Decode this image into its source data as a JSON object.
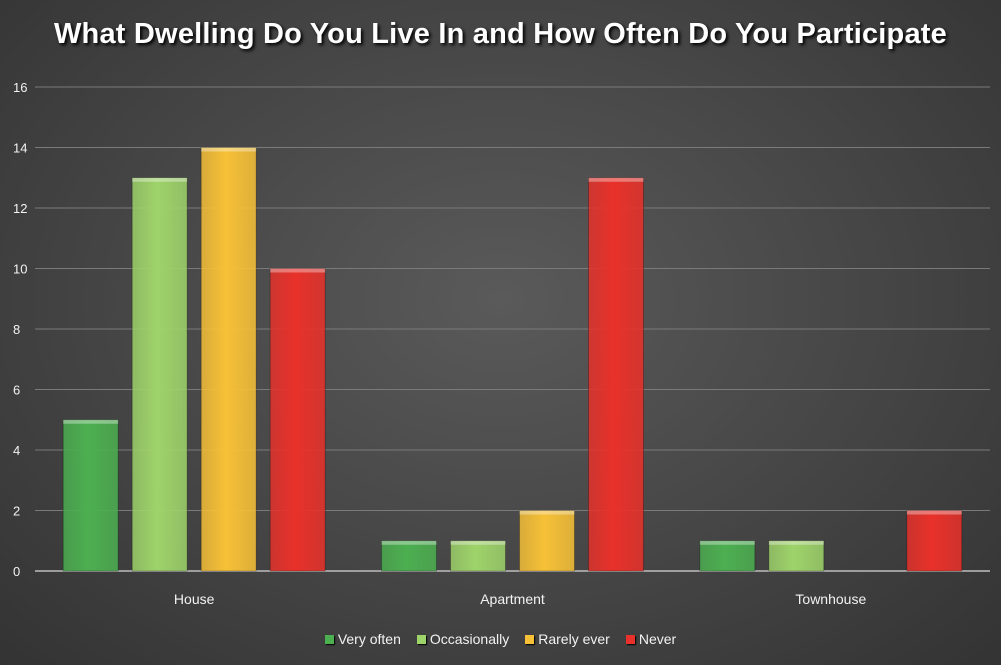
{
  "chart_data": {
    "type": "bar",
    "title": "What Dwelling Do You Live In and How Often Do You Participate",
    "xlabel": "",
    "ylabel": "",
    "categories": [
      "House",
      "Apartment",
      "Townhouse"
    ],
    "series": [
      {
        "name": "Very often",
        "values": [
          5,
          1,
          1
        ],
        "color": "#4caf50"
      },
      {
        "name": "Occasionally",
        "values": [
          13,
          1,
          1
        ],
        "color": "#9ed36a"
      },
      {
        "name": "Rarely ever",
        "values": [
          14,
          2,
          0
        ],
        "color": "#f7c137"
      },
      {
        "name": "Never",
        "values": [
          10,
          13,
          2
        ],
        "color": "#e8312a"
      }
    ],
    "ylim": [
      0,
      16
    ],
    "yticks": [
      0,
      2,
      4,
      6,
      8,
      10,
      12,
      14,
      16
    ],
    "grid": true,
    "legend_position": "bottom"
  }
}
